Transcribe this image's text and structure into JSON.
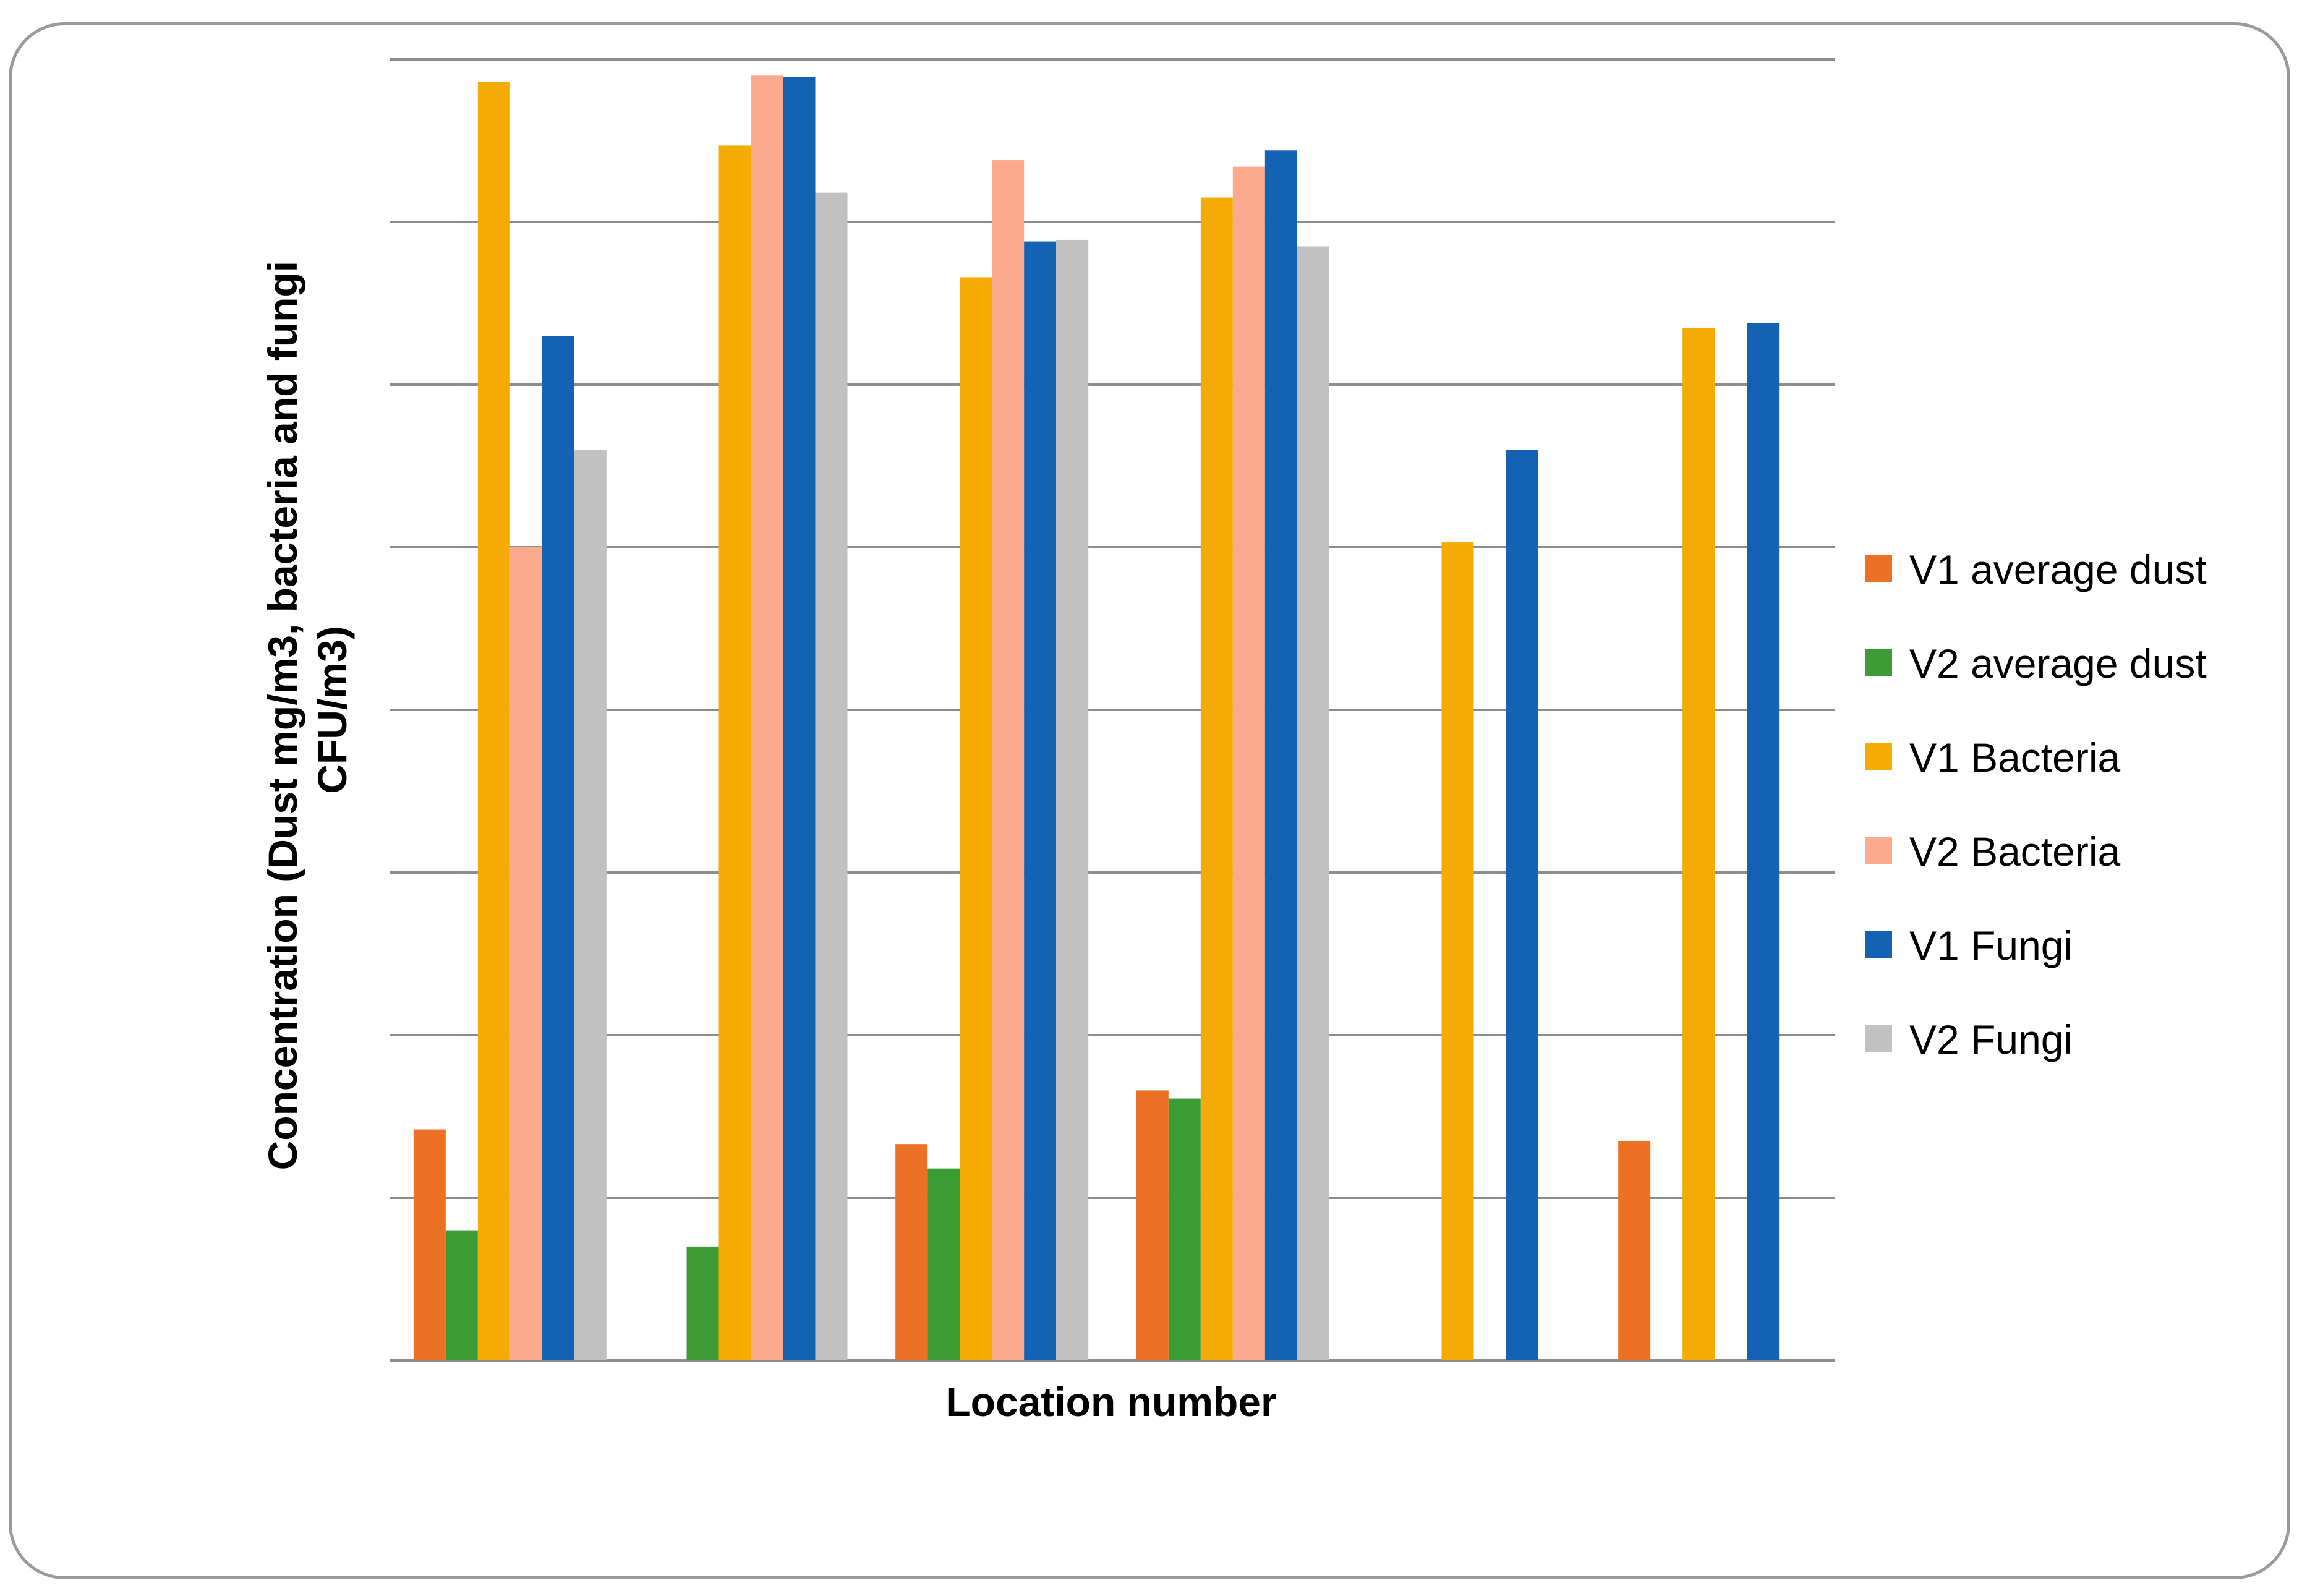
{
  "chart_data": {
    "type": "bar",
    "title": "",
    "xlabel": "Location number",
    "ylabel": "Concentration (Dust mg/m3, bacteria and fungi CFU/m3)",
    "ylabel_lines": [
      "Concentration (Dust mg/m3, bacteria and fungi",
      "CFU/m3)"
    ],
    "ylim": [
      0,
      8
    ],
    "grid": true,
    "legend_position": "right",
    "categories": [
      "",
      "",
      "",
      "",
      "",
      ""
    ],
    "series": [
      {
        "name": "V1 average dust",
        "color": "#ED7125",
        "values": [
          1.42,
          null,
          1.33,
          1.66,
          null,
          1.35
        ]
      },
      {
        "name": "V2 average dust",
        "color": "#3B9B35",
        "values": [
          0.8,
          0.7,
          1.18,
          1.61,
          null,
          null
        ]
      },
      {
        "name": "V1 Bacteria",
        "color": "#F5AA05",
        "values": [
          7.86,
          7.47,
          6.66,
          7.15,
          5.03,
          6.35
        ]
      },
      {
        "name": "V2 Bacteria",
        "color": "#FCAA8B",
        "values": [
          5.0,
          7.9,
          7.38,
          7.34,
          null,
          null
        ]
      },
      {
        "name": "V1 Fungi",
        "color": "#1362B3",
        "values": [
          6.3,
          7.89,
          6.88,
          7.44,
          5.6,
          6.38
        ]
      },
      {
        "name": "V2 Fungi",
        "color": "#C1C1C1",
        "values": [
          5.6,
          7.18,
          6.89,
          6.85,
          null,
          null
        ]
      }
    ]
  }
}
